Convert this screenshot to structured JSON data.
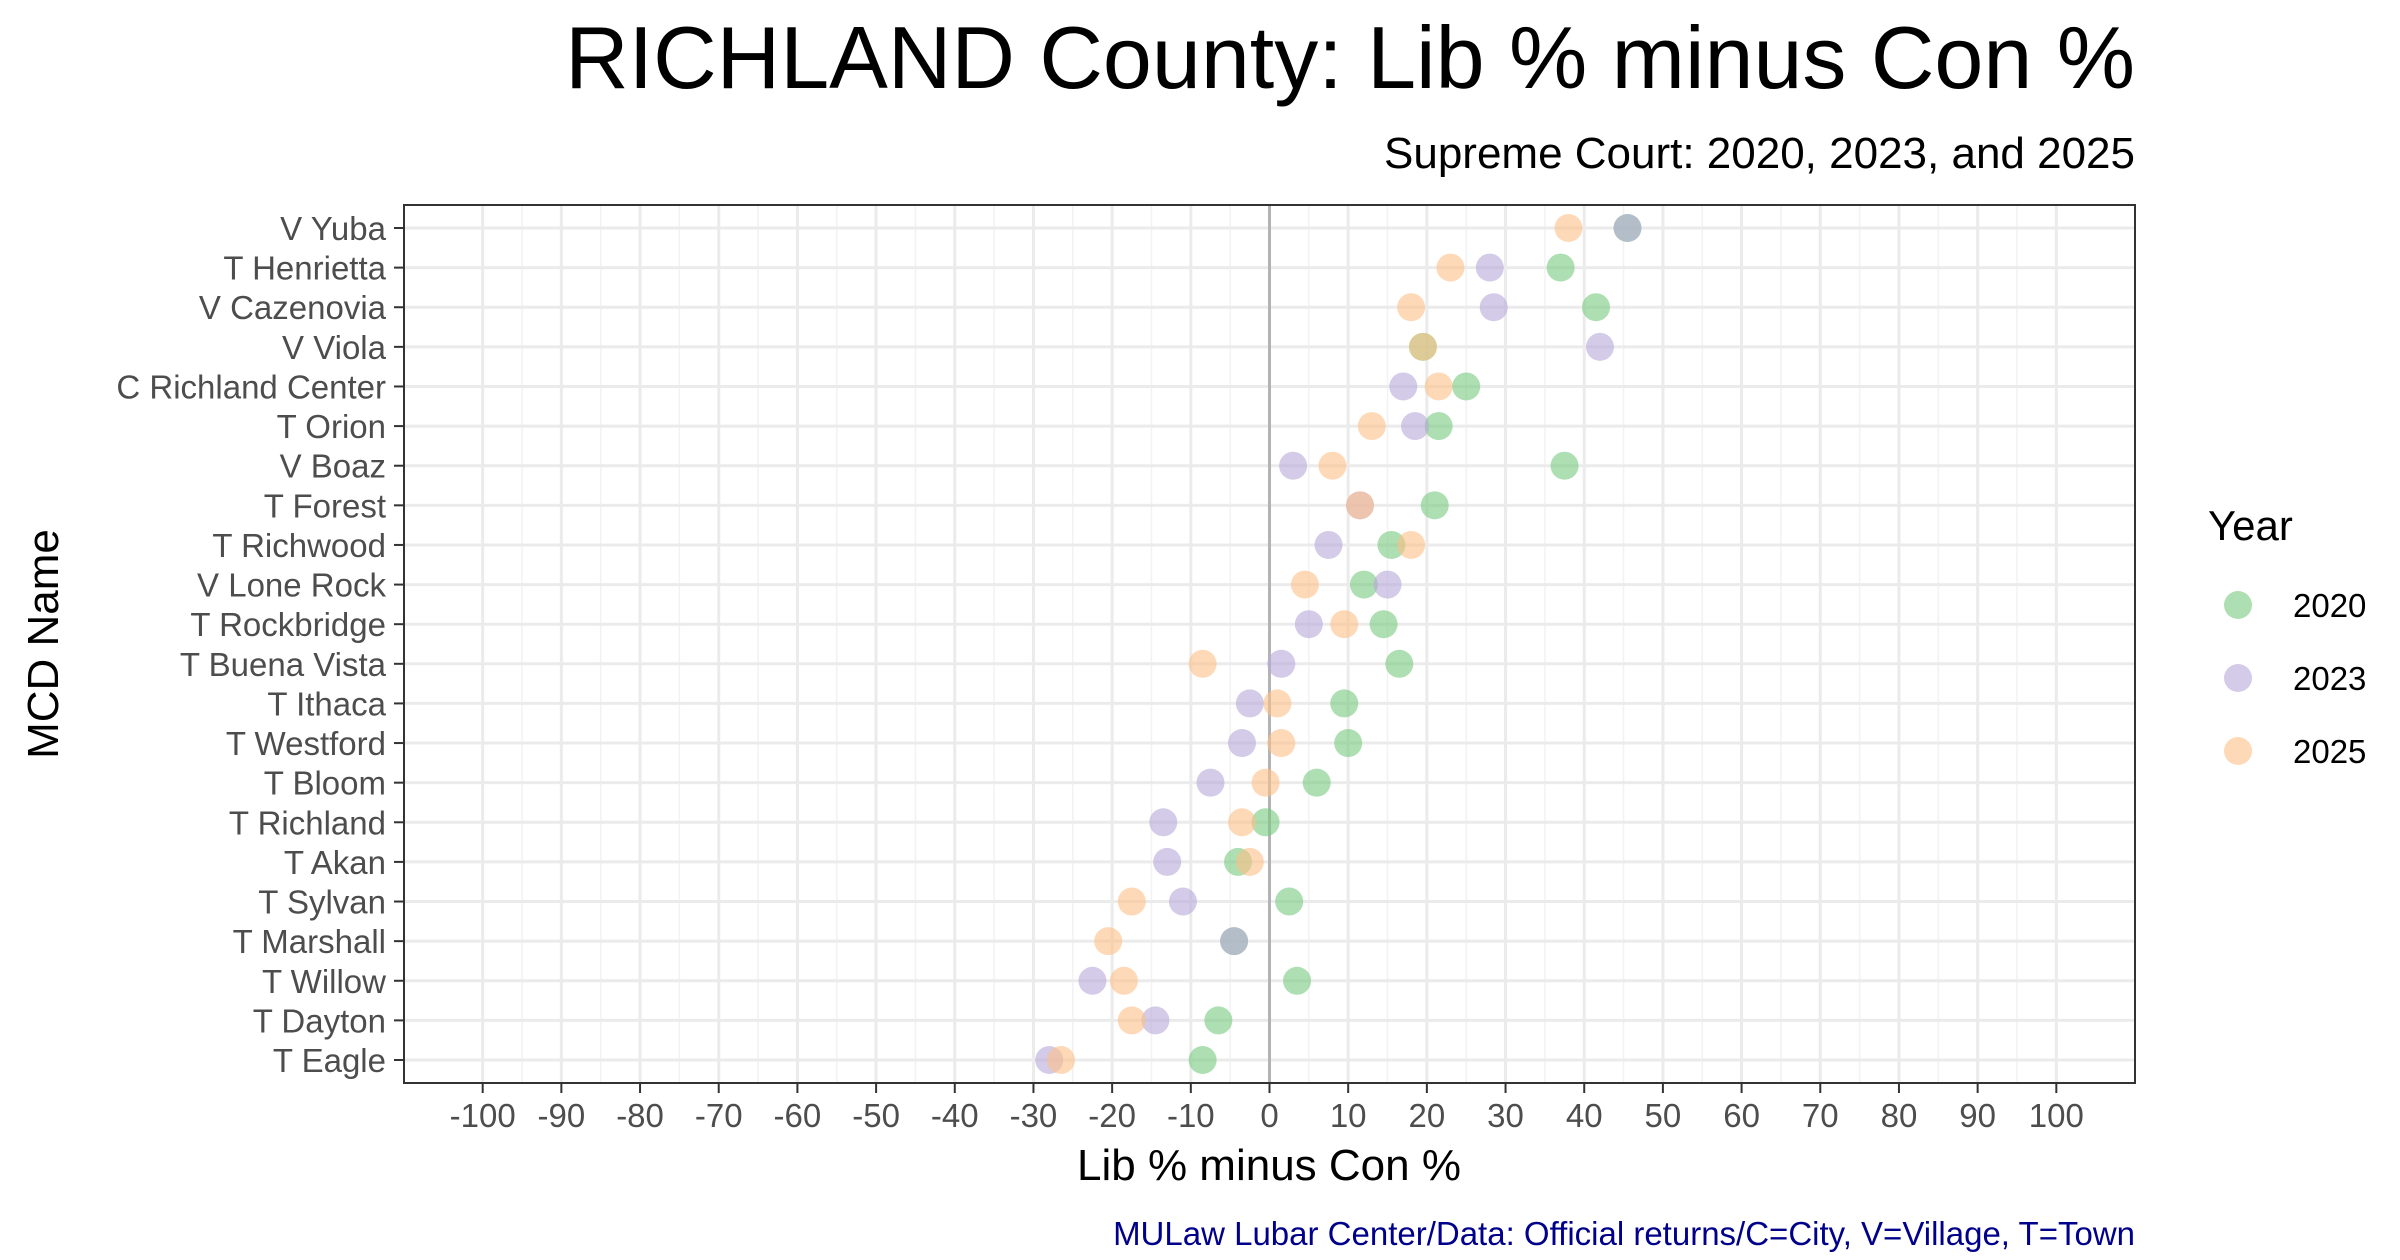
{
  "chart_data": {
    "type": "scatter",
    "title": "RICHLAND County: Lib % minus Con %",
    "subtitle": "Supreme Court: 2020, 2023, and 2025",
    "xlabel": "Lib % minus Con %",
    "ylabel": "MCD Name",
    "caption": "MULaw Lubar Center/Data: Official returns/C=City, V=Village, T=Town",
    "caption_color": "#00008B",
    "xlim": [
      -110,
      110
    ],
    "xticks": [
      -100,
      -90,
      -80,
      -70,
      -60,
      -50,
      -40,
      -30,
      -20,
      -10,
      0,
      10,
      20,
      30,
      40,
      50,
      60,
      70,
      80,
      90,
      100
    ],
    "grid": true,
    "legend": {
      "title": "Year",
      "position": "right"
    },
    "categories": [
      "V Yuba",
      "T Henrietta",
      "V Cazenovia",
      "V Viola",
      "C Richland Center",
      "T Orion",
      "V Boaz",
      "T Forest",
      "T Richwood",
      "V Lone Rock",
      "T Rockbridge",
      "T Buena Vista",
      "T Ithaca",
      "T Westford",
      "T Bloom",
      "T Richland",
      "T Akan",
      "T Sylvan",
      "T Marshall",
      "T Willow",
      "T Dayton",
      "T Eagle"
    ],
    "series": [
      {
        "name": "2020",
        "color": "#77C97F",
        "values": [
          45.5,
          37,
          41.5,
          19.5,
          25,
          21.5,
          37.5,
          21,
          15.5,
          12,
          14.5,
          16.5,
          9.5,
          10,
          6,
          -0.5,
          -4,
          2.5,
          -4.5,
          3.5,
          -6.5,
          -8.5
        ]
      },
      {
        "name": "2023",
        "color": "#B8A9D9",
        "values": [
          45.5,
          28,
          28.5,
          42,
          17,
          18.5,
          3,
          11.5,
          7.5,
          15,
          5,
          1.5,
          -2.5,
          -3.5,
          -7.5,
          -13.5,
          -13,
          -11,
          -4.5,
          -22.5,
          -14.5,
          -28
        ]
      },
      {
        "name": "2025",
        "color": "#FDBF87",
        "values": [
          38,
          23,
          18,
          19.5,
          21.5,
          13,
          8,
          11.5,
          18,
          4.5,
          9.5,
          -8.5,
          1,
          1.5,
          -0.5,
          -3.5,
          -2.5,
          -17.5,
          -20.5,
          -18.5,
          -17.5,
          -26.5
        ]
      }
    ]
  }
}
